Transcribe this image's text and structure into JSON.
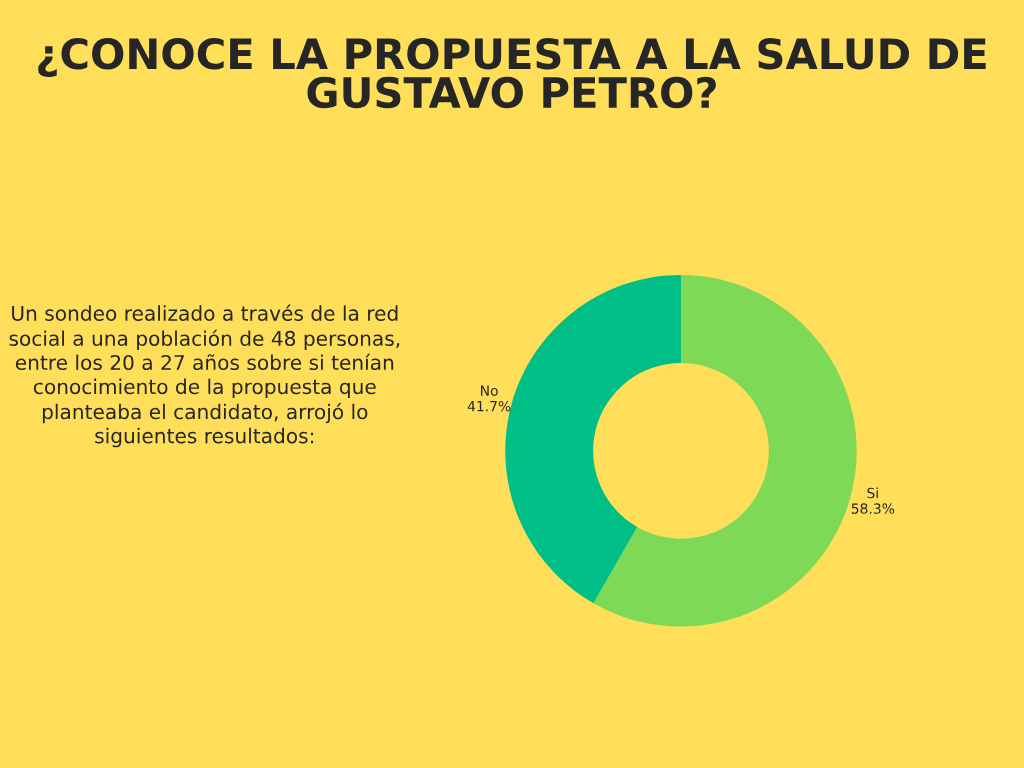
{
  "chart_data": {
    "type": "donut",
    "title": "¿CONOCE LA PROPUESTA A LA SALUD DE GUSTAVO PETRO?",
    "categories": [
      "Si",
      "No"
    ],
    "values": [
      58.3,
      41.7
    ],
    "value_labels": [
      "58.3%",
      "41.7%"
    ],
    "colors": [
      "#7ed957",
      "#00bf86"
    ],
    "annotations": [
      "Un sondeo realizado a través de la red social a una población de 48 personas, entre los 20 a 27 años sobre si tenían conocimiento de la propuesta que planteaba el candidato, arrojó lo siguientes resultados:"
    ],
    "legend": false
  }
}
